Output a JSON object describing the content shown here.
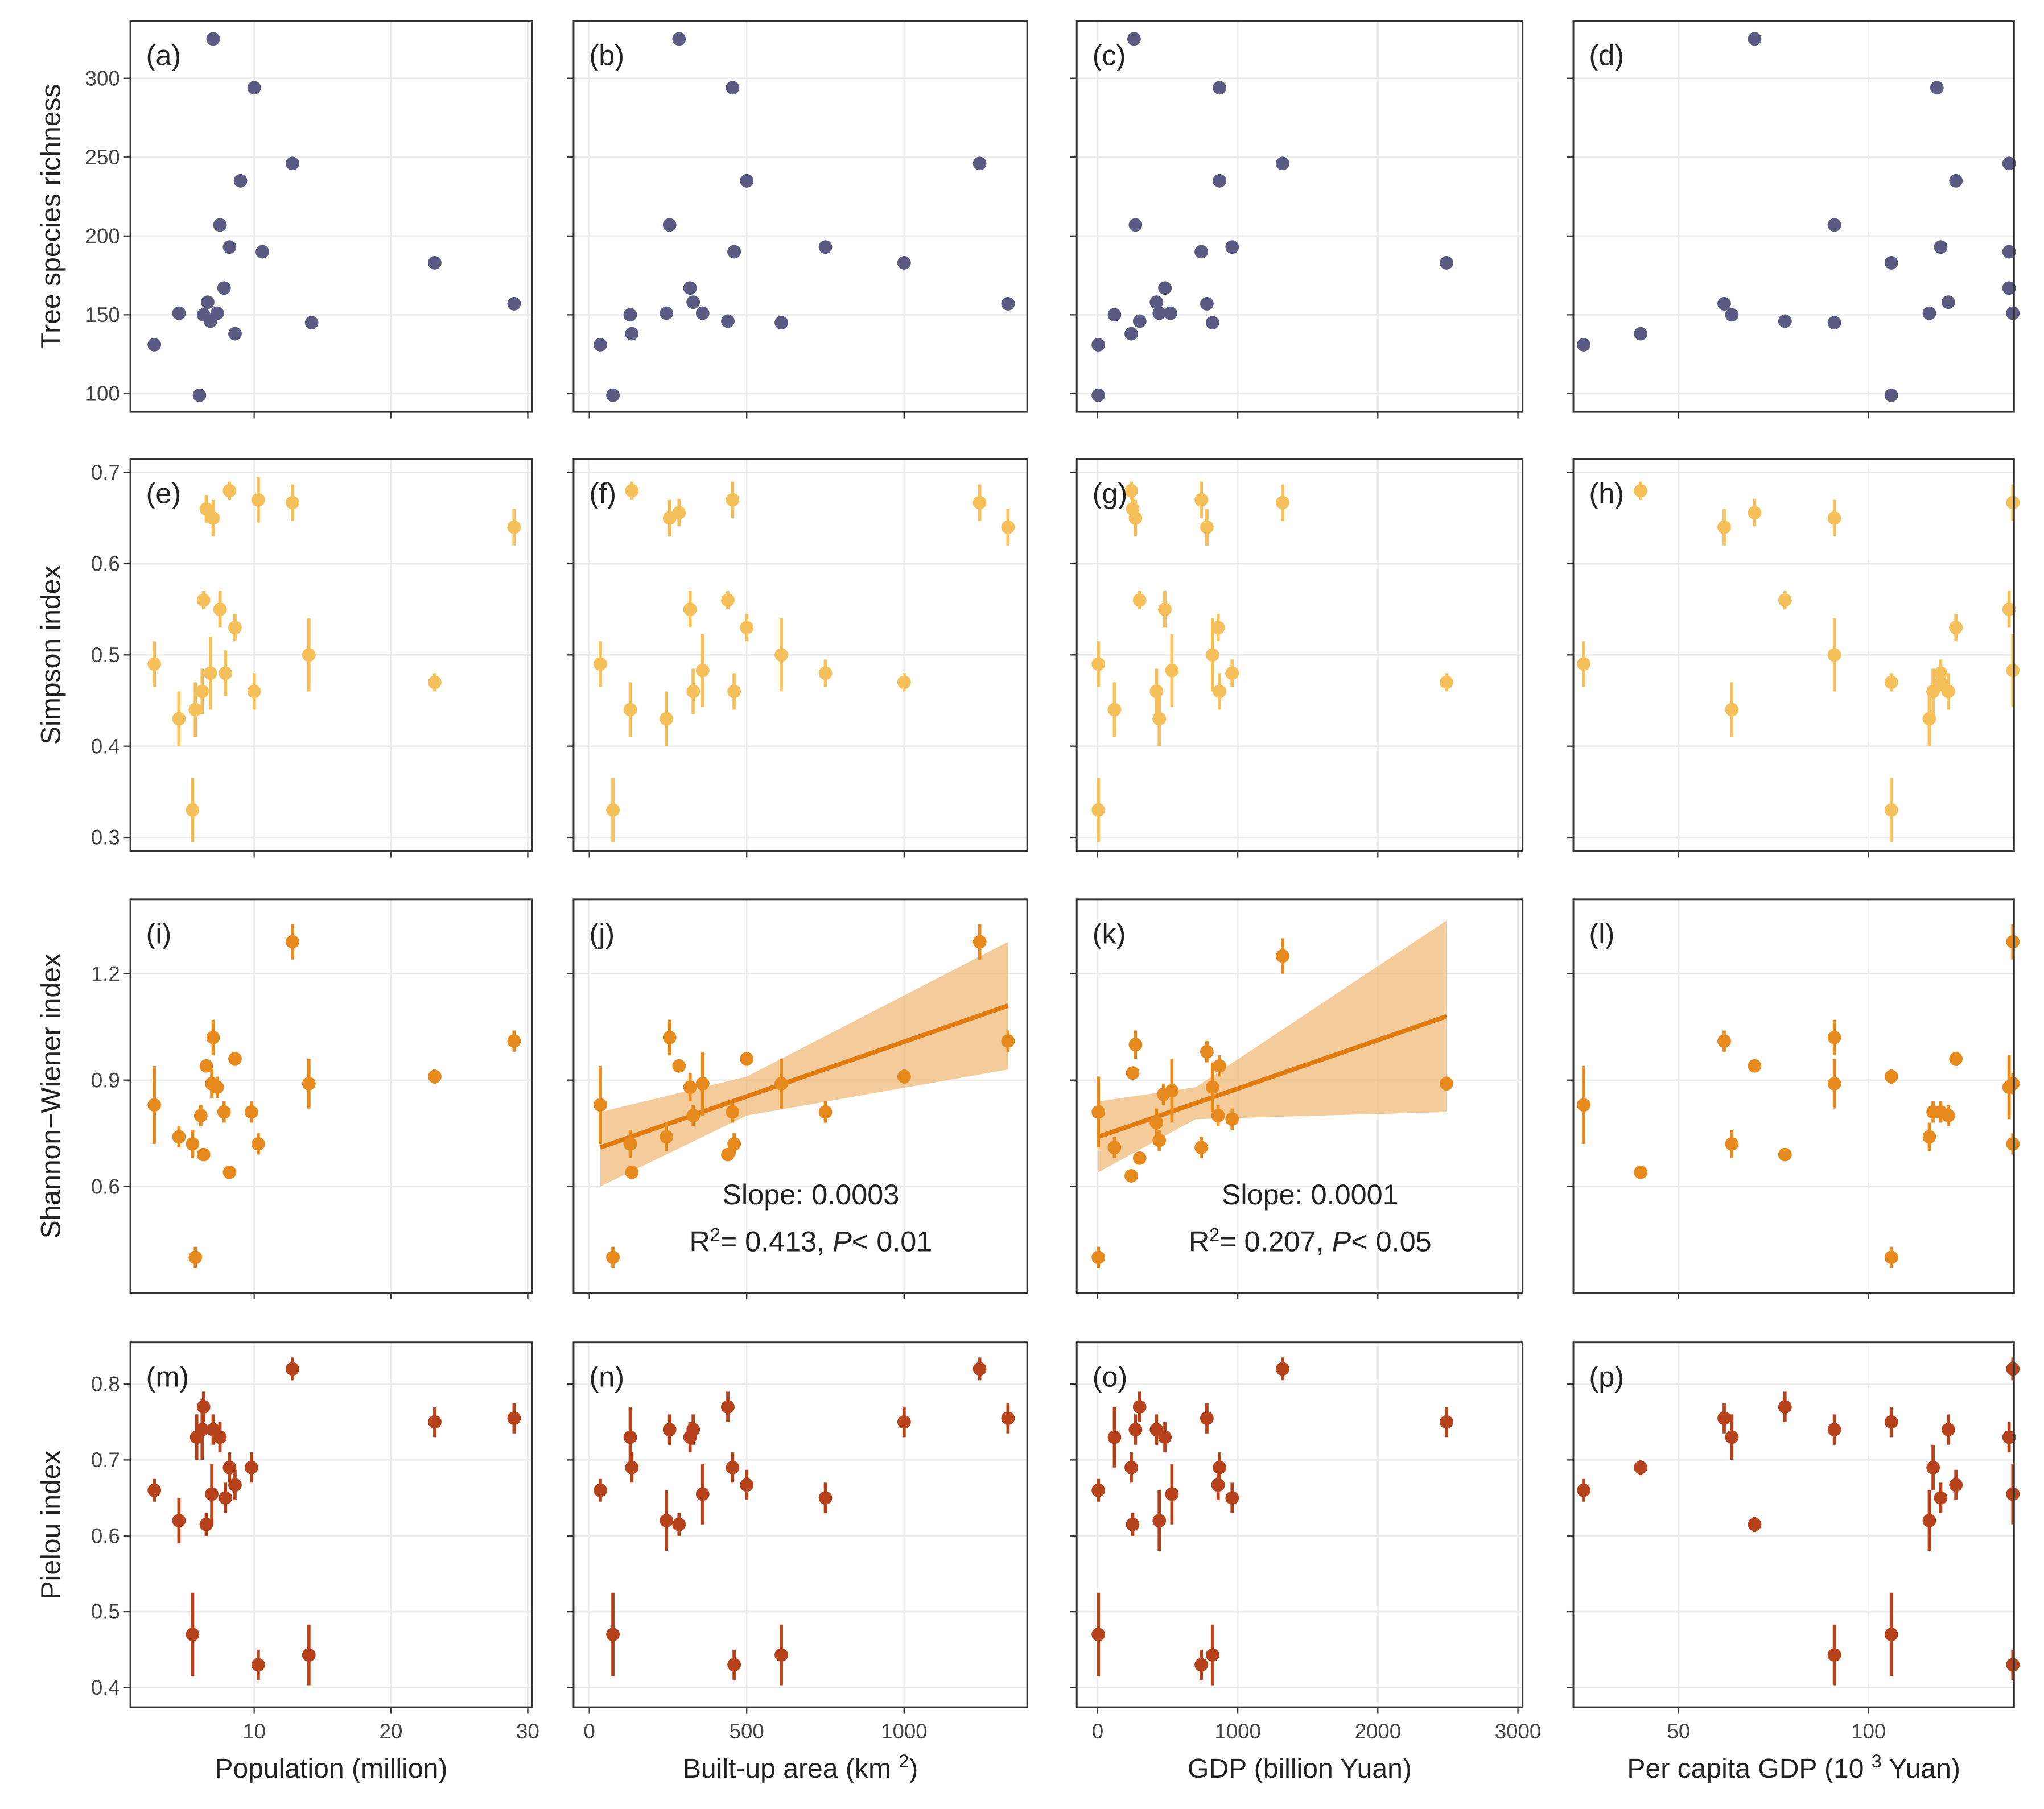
{
  "chart_data": [
    {
      "type": "scatter",
      "label": "(a)",
      "ylabel": "Tree species richness",
      "color": "#5a5a82",
      "xlim": [
        0.95,
        30.3
      ],
      "xticks": [
        10,
        20,
        30
      ],
      "ylim": [
        88.4,
        336.4
      ],
      "yticks": [
        100,
        150,
        200,
        250,
        300
      ],
      "x": [
        2.7,
        4.5,
        6,
        6.3,
        6.6,
        6.8,
        7,
        7.3,
        7.5,
        7.8,
        8.2,
        8.6,
        9,
        10,
        10.6,
        12.8,
        14.2,
        23.2,
        29
      ],
      "values": [
        131,
        151,
        99,
        150,
        158,
        146,
        325,
        151,
        207,
        167,
        193,
        138,
        235,
        294,
        190,
        246,
        145,
        183,
        157
      ]
    },
    {
      "type": "scatter",
      "label": "(b)",
      "color": "#5a5a82",
      "xlim": [
        -50,
        1391
      ],
      "xticks": [
        0,
        500,
        1000
      ],
      "ylim": [
        88.4,
        336.4
      ],
      "yticks": [
        100,
        150,
        200,
        250,
        300
      ],
      "x": [
        35,
        75,
        130,
        135,
        245,
        255,
        285,
        320,
        330,
        360,
        440,
        455,
        460,
        500,
        610,
        750,
        1000,
        1240,
        1330
      ],
      "values": [
        131,
        99,
        150,
        138,
        151,
        207,
        325,
        167,
        158,
        151,
        146,
        294,
        190,
        235,
        145,
        193,
        183,
        246,
        157
      ]
    },
    {
      "type": "scatter",
      "label": "(c)",
      "color": "#5a5a82",
      "xlim": [
        -149,
        3033
      ],
      "xticks": [
        0,
        1000,
        2000,
        3000
      ],
      "ylim": [
        88.4,
        336.4
      ],
      "yticks": [
        100,
        150,
        200,
        250,
        300
      ],
      "x": [
        5,
        5,
        120,
        240,
        260,
        270,
        300,
        420,
        440,
        480,
        520,
        740,
        780,
        820,
        870,
        870,
        960,
        1320,
        2490
      ],
      "values": [
        131,
        99,
        150,
        138,
        325,
        207,
        146,
        158,
        151,
        167,
        151,
        190,
        157,
        145,
        294,
        235,
        193,
        246,
        183
      ]
    },
    {
      "type": "scatter",
      "label": "(d)",
      "color": "#5a5a82",
      "xlim": [
        22.3,
        138.3
      ],
      "xticks": [
        50,
        100
      ],
      "ylim": [
        88.4,
        336.4
      ],
      "yticks": [
        100,
        150,
        200,
        250,
        300
      ],
      "x": [
        25,
        40,
        62,
        64,
        70,
        78,
        91,
        91,
        106,
        106,
        116,
        118,
        119,
        121,
        123,
        137,
        137,
        137,
        138
      ],
      "values": [
        131,
        138,
        157,
        150,
        325,
        146,
        207,
        145,
        183,
        99,
        151,
        294,
        193,
        158,
        235,
        246,
        190,
        167,
        151
      ]
    },
    {
      "type": "scatter",
      "label": "(e)",
      "ylabel": "Simpson index",
      "color": "#f5bf5a",
      "xlim": [
        0.95,
        30.3
      ],
      "xticks": [
        10,
        20,
        30
      ],
      "ylim": [
        0.285,
        0.715
      ],
      "yticks": [
        0.3,
        0.4,
        0.5,
        0.6,
        0.7
      ],
      "x": [
        2.7,
        4.5,
        5.5,
        5.7,
        6.2,
        6.3,
        6.5,
        6.8,
        7,
        7.5,
        7.9,
        8.2,
        8.6,
        10,
        10.3,
        12.8,
        14,
        23.2,
        29
      ],
      "values": [
        0.49,
        0.43,
        0.33,
        0.44,
        0.46,
        0.56,
        0.66,
        0.48,
        0.65,
        0.55,
        0.48,
        0.68,
        0.53,
        0.46,
        0.67,
        0.667,
        0.5,
        0.47,
        0.64
      ],
      "errors": [
        0.025,
        0.03,
        0.035,
        0.03,
        0.025,
        0.01,
        0.015,
        0.04,
        0.02,
        0.02,
        0.025,
        0.01,
        0.015,
        0.02,
        0.025,
        0.02,
        0.04,
        0.01,
        0.02
      ]
    },
    {
      "type": "scatter",
      "label": "(f)",
      "color": "#f5bf5a",
      "xlim": [
        -50,
        1391
      ],
      "xticks": [
        0,
        500,
        1000
      ],
      "ylim": [
        0.285,
        0.715
      ],
      "yticks": [
        0.3,
        0.4,
        0.5,
        0.6,
        0.7
      ],
      "x": [
        35,
        75,
        130,
        135,
        245,
        255,
        285,
        320,
        330,
        360,
        440,
        455,
        460,
        500,
        610,
        750,
        1000,
        1240,
        1330
      ],
      "values": [
        0.49,
        0.33,
        0.44,
        0.68,
        0.43,
        0.65,
        0.656,
        0.55,
        0.46,
        0.483,
        0.56,
        0.67,
        0.46,
        0.53,
        0.5,
        0.48,
        0.47,
        0.667,
        0.64
      ],
      "errors": [
        0.025,
        0.035,
        0.03,
        0.01,
        0.03,
        0.02,
        0.015,
        0.02,
        0.025,
        0.04,
        0.01,
        0.02,
        0.02,
        0.015,
        0.04,
        0.015,
        0.01,
        0.02,
        0.02
      ]
    },
    {
      "type": "scatter",
      "label": "(g)",
      "color": "#f5bf5a",
      "xlim": [
        -149,
        3033
      ],
      "xticks": [
        0,
        1000,
        2000,
        3000
      ],
      "ylim": [
        0.285,
        0.715
      ],
      "yticks": [
        0.3,
        0.4,
        0.5,
        0.6,
        0.7
      ],
      "x": [
        5,
        5,
        120,
        240,
        250,
        270,
        300,
        420,
        440,
        480,
        530,
        740,
        780,
        820,
        860,
        870,
        960,
        1320,
        2490
      ],
      "values": [
        0.49,
        0.33,
        0.44,
        0.68,
        0.66,
        0.65,
        0.56,
        0.46,
        0.43,
        0.55,
        0.483,
        0.67,
        0.64,
        0.5,
        0.53,
        0.46,
        0.48,
        0.667,
        0.47
      ],
      "errors": [
        0.025,
        0.035,
        0.03,
        0.01,
        0.015,
        0.02,
        0.01,
        0.025,
        0.03,
        0.02,
        0.04,
        0.02,
        0.02,
        0.04,
        0.015,
        0.02,
        0.015,
        0.02,
        0.01
      ]
    },
    {
      "type": "scatter",
      "label": "(h)",
      "color": "#f5bf5a",
      "xlim": [
        22.3,
        138.3
      ],
      "xticks": [
        50,
        100
      ],
      "ylim": [
        0.285,
        0.715
      ],
      "yticks": [
        0.3,
        0.4,
        0.5,
        0.6,
        0.7
      ],
      "x": [
        25,
        40,
        62,
        64,
        70,
        78,
        91,
        91,
        106,
        106,
        116,
        117,
        119,
        119,
        121,
        123,
        137,
        138,
        138
      ],
      "values": [
        0.49,
        0.68,
        0.64,
        0.44,
        0.656,
        0.56,
        0.65,
        0.5,
        0.47,
        0.33,
        0.43,
        0.46,
        0.48,
        0.47,
        0.46,
        0.53,
        0.55,
        0.667,
        0.483
      ],
      "errors": [
        0.025,
        0.01,
        0.02,
        0.03,
        0.015,
        0.01,
        0.02,
        0.04,
        0.01,
        0.035,
        0.03,
        0.025,
        0.015,
        0.01,
        0.02,
        0.015,
        0.02,
        0.02,
        0.04
      ]
    },
    {
      "type": "scatter",
      "label": "(i)",
      "ylabel": "Shannon−Wiener index",
      "color": "#e68a1e",
      "xlim": [
        0.95,
        30.3
      ],
      "xticks": [
        10,
        20,
        30
      ],
      "ylim": [
        0.3,
        1.41
      ],
      "yticks": [
        0.6,
        0.9,
        1.2
      ],
      "x": [
        2.7,
        4.5,
        5.5,
        5.7,
        6.1,
        6.3,
        6.5,
        6.9,
        7,
        7.3,
        7.8,
        8.2,
        8.6,
        9.8,
        10.3,
        12.8,
        14,
        23.2,
        29
      ],
      "values": [
        0.83,
        0.74,
        0.72,
        0.4,
        0.8,
        0.69,
        0.94,
        0.89,
        1.02,
        0.88,
        0.81,
        0.64,
        0.96,
        0.81,
        0.72,
        1.29,
        0.89,
        0.91,
        1.01
      ],
      "errors": [
        0.11,
        0.03,
        0.04,
        0.03,
        0.03,
        0.015,
        0.015,
        0.04,
        0.05,
        0.03,
        0.03,
        0.015,
        0.02,
        0.03,
        0.03,
        0.05,
        0.07,
        0.02,
        0.03
      ]
    },
    {
      "type": "scatter",
      "label": "(j)",
      "color": "#e68a1e",
      "xlim": [
        -50,
        1391
      ],
      "xticks": [
        0,
        500,
        1000
      ],
      "ylim": [
        0.3,
        1.41
      ],
      "yticks": [
        0.6,
        0.9,
        1.2
      ],
      "x": [
        35,
        75,
        130,
        135,
        245,
        255,
        285,
        320,
        330,
        360,
        440,
        455,
        460,
        500,
        610,
        750,
        1000,
        1240,
        1330
      ],
      "values": [
        0.83,
        0.4,
        0.72,
        0.64,
        0.74,
        1.02,
        0.94,
        0.88,
        0.8,
        0.89,
        0.69,
        0.81,
        0.72,
        0.96,
        0.89,
        0.81,
        0.91,
        1.29,
        1.01
      ],
      "errors": [
        0.11,
        0.03,
        0.04,
        0.015,
        0.04,
        0.05,
        0.015,
        0.04,
        0.03,
        0.09,
        0.015,
        0.03,
        0.03,
        0.02,
        0.07,
        0.03,
        0.02,
        0.05,
        0.03
      ],
      "fit": {
        "color": "#e07b10",
        "band_color": "#f0b670",
        "x": [
          35,
          500,
          1330
        ],
        "values": [
          0.71,
          0.854,
          1.11
        ],
        "lower": [
          0.6,
          0.8,
          0.93
        ],
        "upper": [
          0.81,
          0.91,
          1.29
        ]
      },
      "slope_label": "Slope: 0.0003",
      "r2_label": [
        "R",
        "2",
        "= 0.413,  ",
        "P",
        "< 0.01"
      ]
    },
    {
      "type": "scatter",
      "label": "(k)",
      "color": "#e68a1e",
      "xlim": [
        -149,
        3033
      ],
      "xticks": [
        0,
        1000,
        2000,
        3000
      ],
      "ylim": [
        0.3,
        1.41
      ],
      "yticks": [
        0.6,
        0.9,
        1.2
      ],
      "x": [
        5,
        5,
        120,
        240,
        250,
        270,
        300,
        420,
        440,
        470,
        530,
        740,
        780,
        820,
        860,
        870,
        960,
        1320,
        2490
      ],
      "values": [
        0.81,
        0.4,
        0.71,
        0.63,
        0.92,
        1.0,
        0.68,
        0.78,
        0.73,
        0.86,
        0.87,
        0.71,
        0.98,
        0.88,
        0.8,
        0.94,
        0.79,
        1.25,
        0.89
      ],
      "errors": [
        0.1,
        0.03,
        0.03,
        0.015,
        0.015,
        0.04,
        0.015,
        0.04,
        0.03,
        0.03,
        0.09,
        0.03,
        0.03,
        0.07,
        0.03,
        0.03,
        0.03,
        0.05,
        0.02
      ],
      "fit": {
        "color": "#e07b10",
        "band_color": "#f0b670",
        "x": [
          5,
          700,
          2490
        ],
        "values": [
          0.74,
          0.835,
          1.08
        ],
        "lower": [
          0.64,
          0.79,
          0.81
        ],
        "upper": [
          0.84,
          0.88,
          1.35
        ]
      },
      "slope_label": "Slope: 0.0001",
      "r2_label": [
        "R",
        "2",
        "= 0.207,  ",
        "P",
        "< 0.05"
      ]
    },
    {
      "type": "scatter",
      "label": "(l)",
      "color": "#e68a1e",
      "xlim": [
        22.3,
        138.3
      ],
      "xticks": [
        50,
        100
      ],
      "ylim": [
        0.3,
        1.41
      ],
      "yticks": [
        0.6,
        0.9,
        1.2
      ],
      "x": [
        25,
        40,
        62,
        64,
        70,
        78,
        91,
        91,
        106,
        106,
        116,
        117,
        119,
        121,
        123,
        137,
        138,
        138,
        138
      ],
      "values": [
        0.83,
        0.64,
        1.01,
        0.72,
        0.94,
        0.69,
        1.02,
        0.89,
        0.91,
        0.4,
        0.74,
        0.81,
        0.81,
        0.8,
        0.96,
        0.88,
        1.29,
        0.72,
        0.89
      ],
      "errors": [
        0.11,
        0.015,
        0.03,
        0.04,
        0.015,
        0.015,
        0.05,
        0.07,
        0.02,
        0.03,
        0.04,
        0.03,
        0.03,
        0.03,
        0.02,
        0.09,
        0.05,
        0.03,
        0.03
      ]
    },
    {
      "type": "scatter",
      "label": "(m)",
      "ylabel": "Pielou index",
      "xlabel": [
        "Population (million)"
      ],
      "color": "#b5421a",
      "xlim": [
        0.95,
        30.3
      ],
      "xticks": [
        10,
        20,
        30
      ],
      "ylim": [
        0.374,
        0.855
      ],
      "yticks": [
        0.4,
        0.5,
        0.6,
        0.7,
        0.8
      ],
      "x": [
        2.7,
        4.5,
        5.5,
        5.8,
        6.2,
        6.3,
        6.5,
        6.9,
        7,
        7.5,
        7.9,
        8.2,
        8.6,
        9.8,
        10.3,
        12.8,
        14,
        23.2,
        29
      ],
      "values": [
        0.66,
        0.62,
        0.47,
        0.73,
        0.74,
        0.77,
        0.615,
        0.655,
        0.74,
        0.73,
        0.65,
        0.69,
        0.667,
        0.69,
        0.43,
        0.82,
        0.443,
        0.75,
        0.755
      ],
      "errors": [
        0.015,
        0.03,
        0.055,
        0.03,
        0.04,
        0.02,
        0.015,
        0.04,
        0.02,
        0.02,
        0.02,
        0.02,
        0.02,
        0.02,
        0.02,
        0.015,
        0.04,
        0.02,
        0.02
      ]
    },
    {
      "type": "scatter",
      "label": "(n)",
      "xlabel": [
        "Built-up area (km ",
        "2",
        ")"
      ],
      "color": "#b5421a",
      "xlim": [
        -50,
        1391
      ],
      "xticks": [
        0,
        500,
        1000
      ],
      "ylim": [
        0.374,
        0.855
      ],
      "yticks": [
        0.4,
        0.5,
        0.6,
        0.7,
        0.8
      ],
      "x": [
        35,
        75,
        130,
        135,
        245,
        255,
        285,
        320,
        330,
        360,
        440,
        455,
        460,
        500,
        610,
        750,
        1000,
        1240,
        1330
      ],
      "values": [
        0.66,
        0.47,
        0.73,
        0.69,
        0.62,
        0.74,
        0.615,
        0.73,
        0.74,
        0.655,
        0.77,
        0.69,
        0.43,
        0.667,
        0.443,
        0.65,
        0.75,
        0.82,
        0.755
      ],
      "errors": [
        0.015,
        0.055,
        0.04,
        0.02,
        0.04,
        0.02,
        0.015,
        0.02,
        0.02,
        0.04,
        0.02,
        0.02,
        0.02,
        0.02,
        0.04,
        0.02,
        0.02,
        0.015,
        0.02
      ]
    },
    {
      "type": "scatter",
      "label": "(o)",
      "xlabel": [
        "GDP (billion  Yuan)"
      ],
      "color": "#b5421a",
      "xlim": [
        -149,
        3033
      ],
      "xticks": [
        0,
        1000,
        2000,
        3000
      ],
      "ylim": [
        0.374,
        0.855
      ],
      "yticks": [
        0.4,
        0.5,
        0.6,
        0.7,
        0.8
      ],
      "x": [
        5,
        5,
        120,
        240,
        250,
        270,
        300,
        420,
        440,
        480,
        530,
        740,
        780,
        820,
        860,
        870,
        960,
        1320,
        2490
      ],
      "values": [
        0.66,
        0.47,
        0.73,
        0.69,
        0.615,
        0.74,
        0.77,
        0.74,
        0.62,
        0.73,
        0.655,
        0.43,
        0.755,
        0.443,
        0.667,
        0.69,
        0.65,
        0.82,
        0.75
      ],
      "errors": [
        0.015,
        0.055,
        0.04,
        0.02,
        0.015,
        0.02,
        0.02,
        0.02,
        0.04,
        0.02,
        0.04,
        0.02,
        0.02,
        0.04,
        0.02,
        0.02,
        0.02,
        0.015,
        0.02
      ]
    },
    {
      "type": "scatter",
      "label": "(p)",
      "xlabel": [
        "Per capita GDP (10 ",
        "3",
        " Yuan)"
      ],
      "color": "#b5421a",
      "xlim": [
        22.3,
        138.3
      ],
      "xticks": [
        50,
        100
      ],
      "ylim": [
        0.374,
        0.855
      ],
      "yticks": [
        0.4,
        0.5,
        0.6,
        0.7,
        0.8
      ],
      "x": [
        25,
        40,
        62,
        64,
        70,
        78,
        91,
        91,
        106,
        106,
        116,
        117,
        119,
        121,
        123,
        137,
        138,
        138,
        138
      ],
      "values": [
        0.66,
        0.69,
        0.755,
        0.73,
        0.615,
        0.77,
        0.74,
        0.443,
        0.75,
        0.47,
        0.62,
        0.69,
        0.65,
        0.74,
        0.667,
        0.73,
        0.82,
        0.655,
        0.43
      ],
      "errors": [
        0.015,
        0.01,
        0.02,
        0.03,
        0.01,
        0.02,
        0.02,
        0.04,
        0.02,
        0.055,
        0.04,
        0.03,
        0.02,
        0.02,
        0.02,
        0.02,
        0.015,
        0.04,
        0.02
      ]
    }
  ]
}
